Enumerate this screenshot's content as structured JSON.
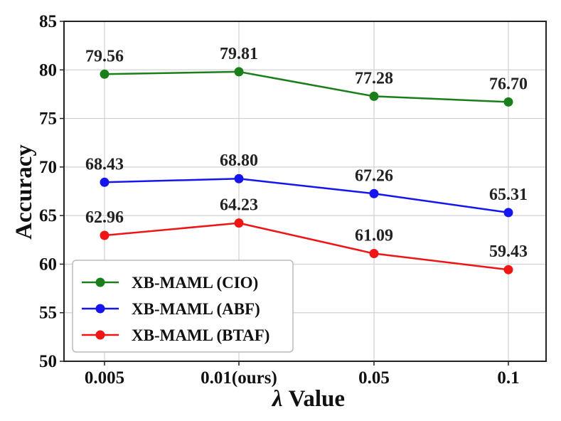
{
  "chart_data": {
    "type": "line",
    "title": "",
    "xlabel": "Value",
    "xlabel_symbol": "λ",
    "ylabel": "Accuracy",
    "categories": [
      "0.005",
      "0.01(ours)",
      "0.05",
      "0.1"
    ],
    "ylim": [
      50,
      85
    ],
    "yticks": [
      50,
      55,
      60,
      65,
      70,
      75,
      80,
      85
    ],
    "grid": true,
    "legend_position": "bottom-left",
    "series": [
      {
        "name": "XB-MAML (CIO)",
        "color": "#1a7f1a",
        "values": [
          79.56,
          79.81,
          77.28,
          76.7
        ],
        "labels": [
          "79.56",
          "79.81",
          "77.28",
          "76.70"
        ]
      },
      {
        "name": "XB-MAML (ABF)",
        "color": "#1515f0",
        "values": [
          68.43,
          68.8,
          67.26,
          65.31
        ],
        "labels": [
          "68.43",
          "68.80",
          "67.26",
          "65.31"
        ]
      },
      {
        "name": "XB-MAML (BTAF)",
        "color": "#f01515",
        "values": [
          62.96,
          64.23,
          61.09,
          59.43
        ],
        "labels": [
          "62.96",
          "64.23",
          "61.09",
          "59.43"
        ]
      }
    ]
  }
}
